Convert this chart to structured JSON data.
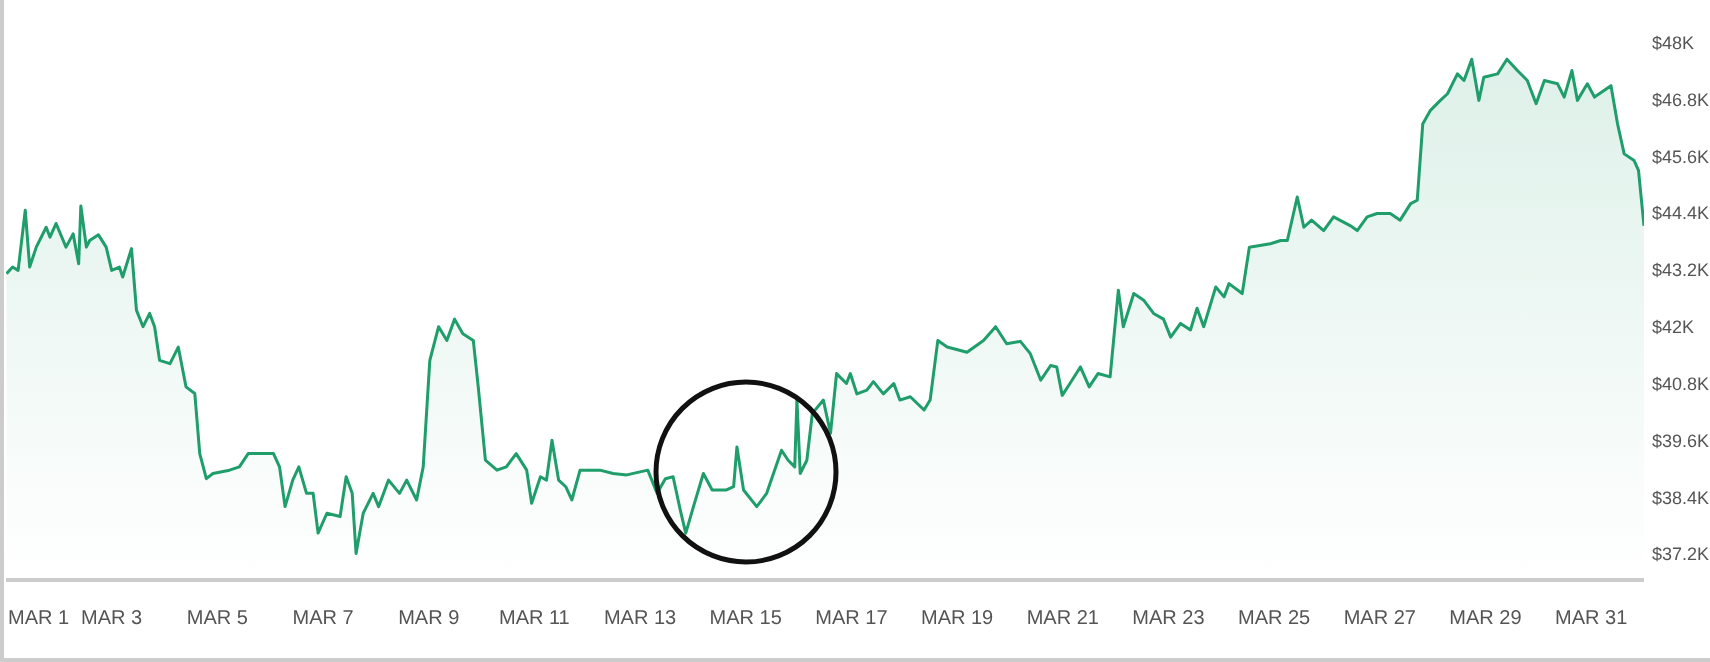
{
  "chart_data": {
    "type": "area",
    "color": "#1f9d6b",
    "x": [
      "--03-01T00:15",
      "--03-01T03:00",
      "--03-01T05:30",
      "--03-01T08:45",
      "--03-01T10:45",
      "--03-01T13:45",
      "--03-01T18:15",
      "--03-01T20:00",
      "--03-01T22:45",
      "--03-02T03:15",
      "--03-02T06:30",
      "--03-02T09:00",
      "--03-02T10:00",
      "--03-02T12:30",
      "--03-02T14:00",
      "--03-02T18:00",
      "--03-02T21:30",
      "--03-03T00:00",
      "--03-03T03:30",
      "--03-03T05:00",
      "--03-03T09:00",
      "--03-03T11:15",
      "--03-03T14:15",
      "--03-03T17:15",
      "--03-03T19:30",
      "--03-03T21:45",
      "--03-04T02:30",
      "--03-04T06:15",
      "--03-04T09:45",
      "--03-04T13:45",
      "--03-04T16:00",
      "--03-04T19:00",
      "--03-04T22:00",
      "--03-05T05:30",
      "--03-05T10:00",
      "--03-05T14:00",
      "--03-05T21:00",
      "--03-06T01:30",
      "--03-06T04:15",
      "--03-06T06:45",
      "--03-06T10:15",
      "--03-06T13:00",
      "--03-06T16:30",
      "--03-06T19:30",
      "--03-06T21:45",
      "--03-07T01:45",
      "--03-07T07:45",
      "--03-07T10:30",
      "--03-07T13:15",
      "--03-07T15:00",
      "--03-07T18:15",
      "--03-07T22:45",
      "--03-08T01:15",
      "--03-08T05:45",
      "--03-08T10:45",
      "--03-08T14:00",
      "--03-08T18:30",
      "--03-08T21:30",
      "--03-09T00:30",
      "--03-09T04:30",
      "--03-09T08:15",
      "--03-09T11:45",
      "--03-09T15:30",
      "--03-09T20:15",
      "--03-09T22:30",
      "--03-10T01:45",
      "--03-10T07:00",
      "--03-10T11:15",
      "--03-10T15:45",
      "--03-10T20:30",
      "--03-10T22:45",
      "--03-11T02:45",
      "--03-11T05:30",
      "--03-11T08:00",
      "--03-11T11:00",
      "--03-11T14:15",
      "--03-11T17:00",
      "--03-11T20:45",
      "--03-12T05:45",
      "--03-12T11:45",
      "--03-12T18:00",
      "--03-13T03:30",
      "--03-13T07:45",
      "--03-13T11:30",
      "--03-13T15:00",
      "--03-13T18:15",
      "--03-13T20:45",
      "--03-14T00:15",
      "--03-14T04:45",
      "--03-14T08:45",
      "--03-14T15:00",
      "--03-14T18:30",
      "--03-14T20:00",
      "--03-14T23:00",
      "--03-15T05:00",
      "--03-15T09:30",
      "--03-15T16:15",
      "--03-15T19:15",
      "--03-15T22:15",
      "--03-15T23:15",
      "--03-16T00:45",
      "--03-16T03:45",
      "--03-16T06:15",
      "--03-16T11:15",
      "--03-16T14:30",
      "--03-16T17:15",
      "--03-16T21:45",
      "--03-16T23:30",
      "--03-17T02:30",
      "--03-17T07:00",
      "--03-17T10:00",
      "--03-17T14:30",
      "--03-17T19:15",
      "--03-17T22:00",
      "--03-18T02:45",
      "--03-18T09:00",
      "--03-18T11:45",
      "--03-18T15:15",
      "--03-18T19:30",
      "--03-19T04:30",
      "--03-19T12:00",
      "--03-19T17:30",
      "--03-19T22:30",
      "--03-20T04:45",
      "--03-20T09:15",
      "--03-20T14:00",
      "--03-20T18:30",
      "--03-20T21:15",
      "--03-20T23:45",
      "--03-21T03:15",
      "--03-21T08:00",
      "--03-21T12:00",
      "--03-21T16:00",
      "--03-21T21:30",
      "--03-22T01:15",
      "--03-22T03:30",
      "--03-22T08:15",
      "--03-22T12:45",
      "--03-22T17:15",
      "--03-22T21:45",
      "--03-23T01:00",
      "--03-23T05:30",
      "--03-23T10:00",
      "--03-23T13:00",
      "--03-23T16:00",
      "--03-23T21:30",
      "--03-24T01:15",
      "--03-24T03:30",
      "--03-24T09:30",
      "--03-24T12:45",
      "--03-24T22:15",
      "--03-25T03:00",
      "--03-25T06:00",
      "--03-25T10:30",
      "--03-25T13:30",
      "--03-25T17:00",
      "--03-25T22:30",
      "--03-26T03:00",
      "--03-26T10:45",
      "--03-26T13:45",
      "--03-26T18:15",
      "--03-26T22:45",
      "--03-27T04:45",
      "--03-27T09:15",
      "--03-27T14:00",
      "--03-27T17:00",
      "--03-27T19:30",
      "--03-27T23:00",
      "--03-28T03:30",
      "--03-28T06:45",
      "--03-28T11:15",
      "--03-28T14:15",
      "--03-28T17:45",
      "--03-28T21:00",
      "--03-28T23:15",
      "--03-29T05:30",
      "--03-29T09:45",
      "--03-29T14:30",
      "--03-29T19:00",
      "--03-29T23:00",
      "--03-30T02:45",
      "--03-30T08:45",
      "--03-30T11:45",
      "--03-30T15:15",
      "--03-30T17:45",
      "--03-30T22:15",
      "--03-31T01:30",
      "--03-31T09:00",
      "--03-31T12:00",
      "--03-31T15:00",
      "--03-31T19:30",
      "--03-31T21:30",
      "--04-01T00:00"
    ],
    "values": [
      43.12,
      43.26,
      43.19,
      44.46,
      43.26,
      43.68,
      44.1,
      43.89,
      44.18,
      43.68,
      43.96,
      43.33,
      44.55,
      43.68,
      43.82,
      43.94,
      43.68,
      43.19,
      43.26,
      43.05,
      43.65,
      42.35,
      42.0,
      42.28,
      42.0,
      41.29,
      41.22,
      41.57,
      40.73,
      40.59,
      39.32,
      38.79,
      38.9,
      38.97,
      39.04,
      39.32,
      39.32,
      39.32,
      39.04,
      38.2,
      38.76,
      39.04,
      38.48,
      38.48,
      37.64,
      38.06,
      37.99,
      38.83,
      38.48,
      37.21,
      38.06,
      38.48,
      38.2,
      38.76,
      38.48,
      38.76,
      38.34,
      39.04,
      41.29,
      42.0,
      41.71,
      42.16,
      41.85,
      41.71,
      40.73,
      39.18,
      38.97,
      39.04,
      39.32,
      38.97,
      38.27,
      38.83,
      38.76,
      39.6,
      38.76,
      38.62,
      38.34,
      38.97,
      38.97,
      38.9,
      38.87,
      38.97,
      38.48,
      38.79,
      38.83,
      38.13,
      37.64,
      38.2,
      38.9,
      38.55,
      38.55,
      38.62,
      39.46,
      38.55,
      38.2,
      38.48,
      39.39,
      39.18,
      39.04,
      40.45,
      38.9,
      39.18,
      40.17,
      40.45,
      39.75,
      41.01,
      40.8,
      41.01,
      40.58,
      40.66,
      40.84,
      40.58,
      40.8,
      40.45,
      40.52,
      40.24,
      40.45,
      41.71,
      41.57,
      41.46,
      41.71,
      42.0,
      41.64,
      41.69,
      41.43,
      40.87,
      41.18,
      41.15,
      40.55,
      40.8,
      41.15,
      40.73,
      41.01,
      40.94,
      42.77,
      42.0,
      42.7,
      42.56,
      42.28,
      42.16,
      41.78,
      42.07,
      41.93,
      42.39,
      42.0,
      42.84,
      42.63,
      42.91,
      42.7,
      43.68,
      43.75,
      43.82,
      43.82,
      44.74,
      44.1,
      44.25,
      44.03,
      44.32,
      44.13,
      44.03,
      44.32,
      44.39,
      44.39,
      44.25,
      44.6,
      44.67,
      46.28,
      46.57,
      46.78,
      46.92,
      47.34,
      47.2,
      47.65,
      46.78,
      47.27,
      47.34,
      47.65,
      47.41,
      47.2,
      46.71,
      47.2,
      47.13,
      46.85,
      47.41,
      46.78,
      47.13,
      46.85,
      47.09,
      46.28,
      45.65,
      45.51,
      45.3,
      44.13
    ],
    "xlim": [
      "--03-01",
      "--04-01"
    ],
    "xticks": [
      {
        "value": "--03-01",
        "label": "MAR 1"
      },
      {
        "value": "--03-03",
        "label": "MAR 3"
      },
      {
        "value": "--03-05",
        "label": "MAR 5"
      },
      {
        "value": "--03-07",
        "label": "MAR 7"
      },
      {
        "value": "--03-09",
        "label": "MAR 9"
      },
      {
        "value": "--03-11",
        "label": "MAR 11"
      },
      {
        "value": "--03-13",
        "label": "MAR 13"
      },
      {
        "value": "--03-15",
        "label": "MAR 15"
      },
      {
        "value": "--03-17",
        "label": "MAR 17"
      },
      {
        "value": "--03-19",
        "label": "MAR 19"
      },
      {
        "value": "--03-21",
        "label": "MAR 21"
      },
      {
        "value": "--03-23",
        "label": "MAR 23"
      },
      {
        "value": "--03-25",
        "label": "MAR 25"
      },
      {
        "value": "--03-27",
        "label": "MAR 27"
      },
      {
        "value": "--03-29",
        "label": "MAR 29"
      },
      {
        "value": "--03-31",
        "label": "MAR 31"
      }
    ],
    "ylim": [
      36.65,
      48.9
    ],
    "yticks": [
      {
        "value": 37.2,
        "label": "$37.2K"
      },
      {
        "value": 38.4,
        "label": "$38.4K"
      },
      {
        "value": 39.6,
        "label": "$39.6K"
      },
      {
        "value": 40.8,
        "label": "$40.8K"
      },
      {
        "value": 42,
        "label": "$42K"
      },
      {
        "value": 43.2,
        "label": "$43.2K"
      },
      {
        "value": 44.4,
        "label": "$44.4K"
      },
      {
        "value": 45.6,
        "label": "$45.6K"
      },
      {
        "value": 46.8,
        "label": "$46.8K"
      },
      {
        "value": 48,
        "label": "$48K"
      }
    ],
    "grid": false,
    "legend": false,
    "marker": "none",
    "line_style": "solid"
  }
}
